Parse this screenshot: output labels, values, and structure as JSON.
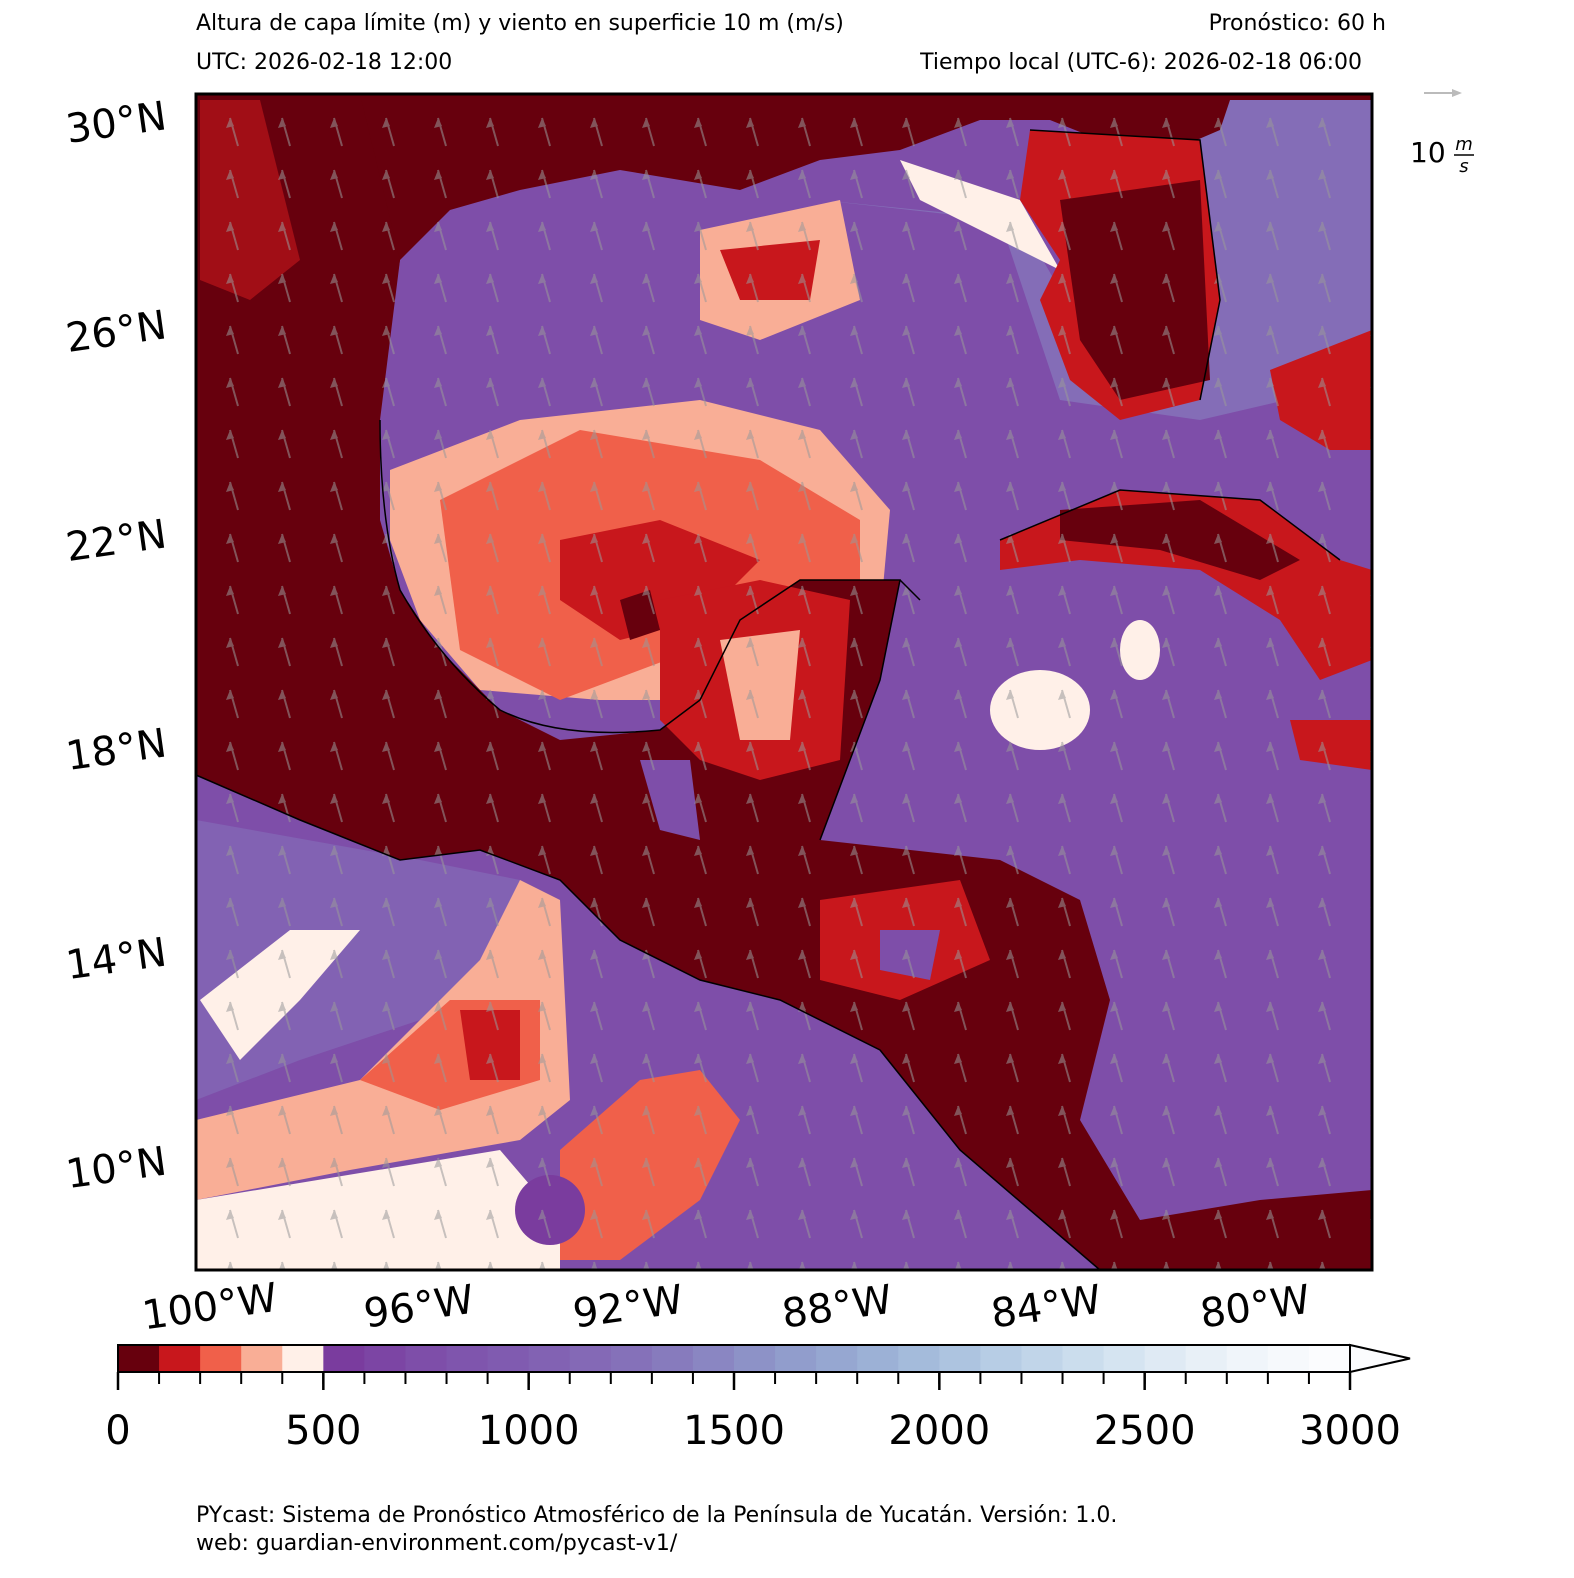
{
  "map": {
    "title": "Altura de capa límite (m) y viento en superficie 10 m (m/s)",
    "forecast": "Pronóstico: 60 h",
    "utc": "UTC:  2026-02-18 12:00",
    "local_time": "Tiempo local (UTC-6): 2026-02-18 06:00",
    "lon_lim": [
      -100.3,
      -77.8
    ],
    "lat_lim": [
      7.9,
      30.4
    ],
    "lon_ticks": [
      {
        "value": -100,
        "label": "100°W"
      },
      {
        "value": -96,
        "label": "96°W"
      },
      {
        "value": -92,
        "label": "92°W"
      },
      {
        "value": -88,
        "label": "88°W"
      },
      {
        "value": -84,
        "label": "84°W"
      },
      {
        "value": -80,
        "label": "80°W"
      }
    ],
    "lat_ticks": [
      {
        "value": 30,
        "label": "30°N"
      },
      {
        "value": 26,
        "label": "26°N"
      },
      {
        "value": 22,
        "label": "22°N"
      },
      {
        "value": 18,
        "label": "18°N"
      },
      {
        "value": 14,
        "label": "14°N"
      },
      {
        "value": 10,
        "label": "10°N"
      }
    ],
    "wind_reference": {
      "value": 10,
      "unit_numerator": "m",
      "unit_denominator": "s"
    },
    "colorbar": {
      "lim": [
        0,
        3000
      ],
      "ticks": [
        0,
        500,
        1000,
        1500,
        2000,
        2500,
        3000
      ],
      "extend": "max",
      "colors": [
        "#67000d",
        "#c8171c",
        "#f0604a",
        "#f9ae96",
        "#fff0e8",
        "#7a3c9e",
        "#7c45a4",
        "#7e4ea9",
        "#7f55ad",
        "#805bb0",
        "#8262b3",
        "#8469b6",
        "#8571b9",
        "#877bbd",
        "#8a86c2",
        "#8d92c7",
        "#919dcc",
        "#96a7d1",
        "#9cb1d6",
        "#a4bbdb",
        "#adc4e0",
        "#b7cde5",
        "#c1d5e9",
        "#cbdded",
        "#d5e4f1",
        "#dfeaf4",
        "#e8f0f7",
        "#f0f5fa",
        "#f6f9fc",
        "#fbfcfe"
      ]
    },
    "footer": [
      "PYcast: Sistema de Pronóstico Atmosférico de la Península de Yucatán. Versión: 1.0.",
      "web: guardian-environment.com/pycast-v1/"
    ]
  }
}
